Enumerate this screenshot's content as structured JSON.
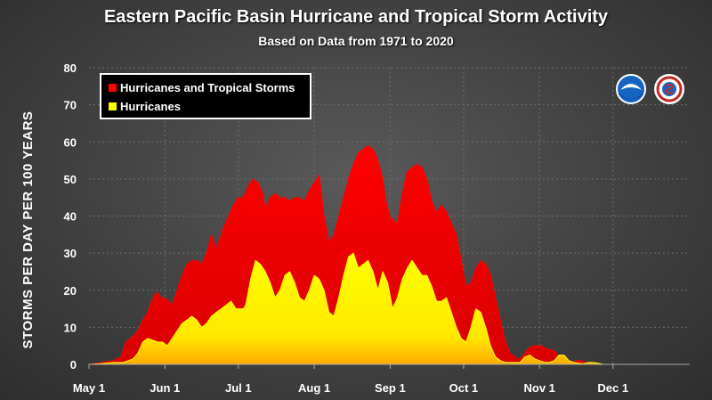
{
  "chart_data": {
    "type": "area",
    "title": "Eastern Pacific Basin Hurricane and Tropical Storm Activity",
    "subtitle": "Based on Data from 1971 to 2020",
    "xlabel": "",
    "ylabel": "STORMS PER DAY PER 100 YEARS",
    "ylim": [
      0,
      80
    ],
    "yticks": [
      "0",
      "10",
      "20",
      "30",
      "40",
      "50",
      "60",
      "70",
      "80"
    ],
    "xticks": [
      {
        "day": 0,
        "label": "May 1"
      },
      {
        "day": 31,
        "label": "Jun 1"
      },
      {
        "day": 61,
        "label": "Jul 1"
      },
      {
        "day": 92,
        "label": "Aug 1"
      },
      {
        "day": 123,
        "label": "Sep 1"
      },
      {
        "day": 153,
        "label": "Oct 1"
      },
      {
        "day": 184,
        "label": "Nov 1"
      },
      {
        "day": 214,
        "label": "Dec 1"
      }
    ],
    "xlim": [
      0,
      245
    ],
    "grid": true,
    "legend_position": "top-left",
    "series": [
      {
        "name": "Hurricanes and Tropical Storms",
        "color": "#ff0000",
        "x": [
          0,
          5,
          10,
          13,
          15,
          17,
          20,
          22,
          24,
          25,
          27,
          28,
          29,
          31,
          34,
          36,
          38,
          40,
          42,
          44,
          46,
          48,
          50,
          52,
          54,
          55,
          57,
          59,
          61,
          63,
          65,
          67,
          69,
          71,
          72,
          74,
          76,
          78,
          80,
          82,
          84,
          86,
          88,
          90,
          92,
          94,
          96,
          98,
          100,
          102,
          104,
          106,
          108,
          110,
          112,
          114,
          116,
          118,
          120,
          121,
          122,
          123,
          124,
          126,
          128,
          130,
          132,
          134,
          136,
          138,
          140,
          142,
          144,
          146,
          148,
          150,
          152,
          154,
          156,
          158,
          160,
          162,
          164,
          166,
          168,
          170,
          172,
          174,
          175,
          177,
          179,
          181,
          183,
          185,
          187,
          189,
          191,
          193,
          195,
          197,
          199,
          201,
          203,
          205,
          207,
          209,
          211,
          213,
          215,
          217,
          219,
          221,
          223,
          225,
          227,
          229,
          231,
          233,
          245
        ],
        "values": [
          0,
          0.5,
          1,
          2,
          6,
          7,
          9,
          12,
          14,
          16,
          19,
          19.5,
          18,
          18,
          16,
          20,
          24,
          27,
          28,
          28,
          27,
          30,
          35,
          31,
          35,
          37,
          40,
          43,
          45,
          45,
          48,
          50,
          49,
          46,
          42,
          45,
          46,
          45,
          45,
          44,
          45,
          45,
          44,
          47,
          49,
          51,
          40,
          33,
          35,
          40,
          45,
          50,
          54,
          57,
          58,
          59,
          58,
          55,
          50,
          45,
          42,
          40,
          39,
          38,
          46,
          52,
          53,
          54,
          53,
          50,
          44,
          41,
          43,
          41,
          38,
          35,
          28,
          21,
          22,
          26,
          28,
          27,
          24,
          18,
          12,
          6,
          3,
          2,
          1.5,
          2,
          4,
          5,
          5,
          5,
          4,
          4,
          3,
          1,
          0.5,
          0.3,
          1,
          1,
          0.5,
          0.2,
          0,
          0,
          0,
          0,
          0,
          0,
          0,
          0,
          0,
          0,
          0,
          0,
          0,
          0,
          0
        ],
        "x_values": "shared"
      },
      {
        "name": "Hurricanes",
        "color": "#ffff00",
        "x": [
          0,
          5,
          10,
          12,
          14,
          16,
          18,
          20,
          22,
          24,
          26,
          28,
          30,
          32,
          34,
          36,
          38,
          40,
          42,
          44,
          46,
          48,
          50,
          52,
          54,
          56,
          58,
          60,
          62,
          63,
          64,
          66,
          68,
          70,
          72,
          74,
          76,
          78,
          80,
          82,
          84,
          86,
          88,
          90,
          92,
          94,
          96,
          98,
          100,
          102,
          104,
          106,
          108,
          110,
          112,
          114,
          116,
          118,
          120,
          122,
          124,
          126,
          128,
          130,
          132,
          134,
          136,
          138,
          140,
          142,
          144,
          146,
          148,
          150,
          152,
          154,
          156,
          158,
          160,
          162,
          164,
          166,
          168,
          170,
          172,
          174,
          176,
          178,
          180,
          182,
          184,
          186,
          188,
          190,
          192,
          194,
          196,
          198,
          200,
          202,
          204,
          206,
          208,
          210,
          212,
          214,
          216,
          218,
          220,
          222,
          224,
          226,
          228,
          230,
          232,
          234,
          236,
          238,
          245
        ],
        "values": [
          0,
          0.2,
          0.5,
          0.5,
          0.5,
          1,
          1.5,
          3,
          6,
          7,
          6.5,
          6,
          6,
          5,
          7,
          9,
          11,
          12,
          13,
          12,
          10,
          11,
          13,
          14,
          15,
          16,
          17,
          15,
          15,
          15,
          16,
          23,
          28,
          27,
          25,
          22,
          18,
          20,
          24,
          25,
          22,
          18,
          17,
          20,
          24,
          23,
          20,
          14,
          13,
          18,
          24,
          29,
          30,
          26,
          27,
          28,
          25,
          20,
          25,
          22,
          15,
          18,
          23,
          26,
          28,
          26,
          24,
          24,
          21,
          17,
          17,
          18,
          14,
          10,
          7,
          6,
          10,
          15,
          14,
          10,
          5,
          2,
          1,
          0.5,
          0.5,
          0.5,
          0.5,
          2,
          2.5,
          1.5,
          1,
          0.5,
          0.5,
          1,
          2.5,
          2.5,
          1,
          0.5,
          0.3,
          0.2,
          0.5,
          0.5,
          0.3,
          0,
          0,
          0,
          0,
          0,
          0,
          0,
          0,
          0,
          0,
          0,
          0,
          0,
          0,
          0,
          0
        ],
        "x_values": "shared"
      }
    ]
  },
  "logos": [
    {
      "name": "noaa-logo",
      "lettering": "NOAA"
    },
    {
      "name": "nws-logo",
      "lettering": "NATIONAL WEATHER SERVICE"
    }
  ]
}
